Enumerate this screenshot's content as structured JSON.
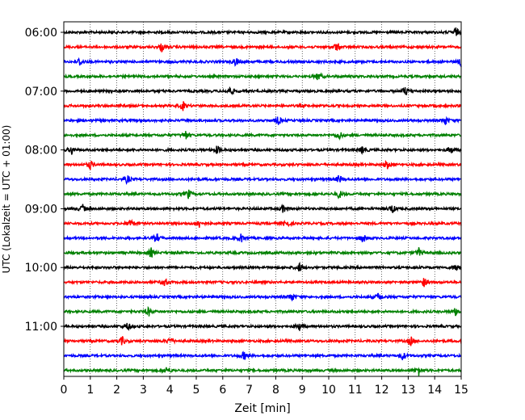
{
  "chart_data": {
    "type": "line",
    "title": "",
    "xlabel": "Zeit  [min]",
    "ylabel": "UTC (Lokalzeit = UTC + 01:00)",
    "xlim": [
      0,
      15
    ],
    "x_ticks": [
      "0",
      "1",
      "2",
      "3",
      "4",
      "5",
      "6",
      "7",
      "8",
      "9",
      "10",
      "11",
      "12",
      "13",
      "14",
      "15"
    ],
    "y_ticks": [
      "06:00",
      "07:00",
      "08:00",
      "09:00",
      "10:00",
      "11:00"
    ],
    "grid": "vertical dotted",
    "legend": "none",
    "series": [
      {
        "start": "06:00",
        "color": "#000000",
        "events": [
          14.8
        ]
      },
      {
        "start": "06:15",
        "color": "#ff0000",
        "events": [
          3.7,
          10.3
        ]
      },
      {
        "start": "06:30",
        "color": "#0000ff",
        "events": [
          0.6,
          6.5,
          15.0
        ]
      },
      {
        "start": "06:45",
        "color": "#008000",
        "events": [
          9.6
        ]
      },
      {
        "start": "07:00",
        "color": "#000000",
        "events": [
          6.3,
          12.9
        ]
      },
      {
        "start": "07:15",
        "color": "#ff0000",
        "events": [
          4.5
        ]
      },
      {
        "start": "07:30",
        "color": "#0000ff",
        "events": [
          8.1,
          14.4
        ]
      },
      {
        "start": "07:45",
        "color": "#008000",
        "events": [
          4.6,
          10.4
        ]
      },
      {
        "start": "08:00",
        "color": "#000000",
        "events": [
          0.3,
          5.8,
          11.3,
          14.6
        ]
      },
      {
        "start": "08:15",
        "color": "#ff0000",
        "events": [
          1.0,
          12.2
        ]
      },
      {
        "start": "08:30",
        "color": "#0000ff",
        "events": [
          2.4,
          10.4
        ]
      },
      {
        "start": "08:45",
        "color": "#008000",
        "events": [
          4.7,
          10.4
        ]
      },
      {
        "start": "09:00",
        "color": "#000000",
        "events": [
          0.7,
          8.3,
          12.4
        ]
      },
      {
        "start": "09:15",
        "color": "#ff0000",
        "events": [
          2.5,
          5.1,
          8.4
        ]
      },
      {
        "start": "09:30",
        "color": "#0000ff",
        "events": [
          3.5,
          6.7,
          11.3
        ]
      },
      {
        "start": "09:45",
        "color": "#008000",
        "events": [
          3.3,
          13.4
        ]
      },
      {
        "start": "10:00",
        "color": "#000000",
        "events": [
          8.9,
          14.8
        ]
      },
      {
        "start": "10:15",
        "color": "#ff0000",
        "events": [
          3.8,
          13.6
        ]
      },
      {
        "start": "10:30",
        "color": "#0000ff",
        "events": [
          8.6,
          11.9
        ]
      },
      {
        "start": "10:45",
        "color": "#008000",
        "events": [
          3.2,
          14.8
        ]
      },
      {
        "start": "11:00",
        "color": "#000000",
        "events": [
          2.4,
          8.9
        ]
      },
      {
        "start": "11:15",
        "color": "#ff0000",
        "events": [
          2.2,
          4.0,
          13.1
        ]
      },
      {
        "start": "11:30",
        "color": "#0000ff",
        "events": [
          6.8,
          12.8
        ]
      },
      {
        "start": "11:45",
        "color": "#008000",
        "events": [
          3.9,
          13.4
        ]
      }
    ]
  }
}
